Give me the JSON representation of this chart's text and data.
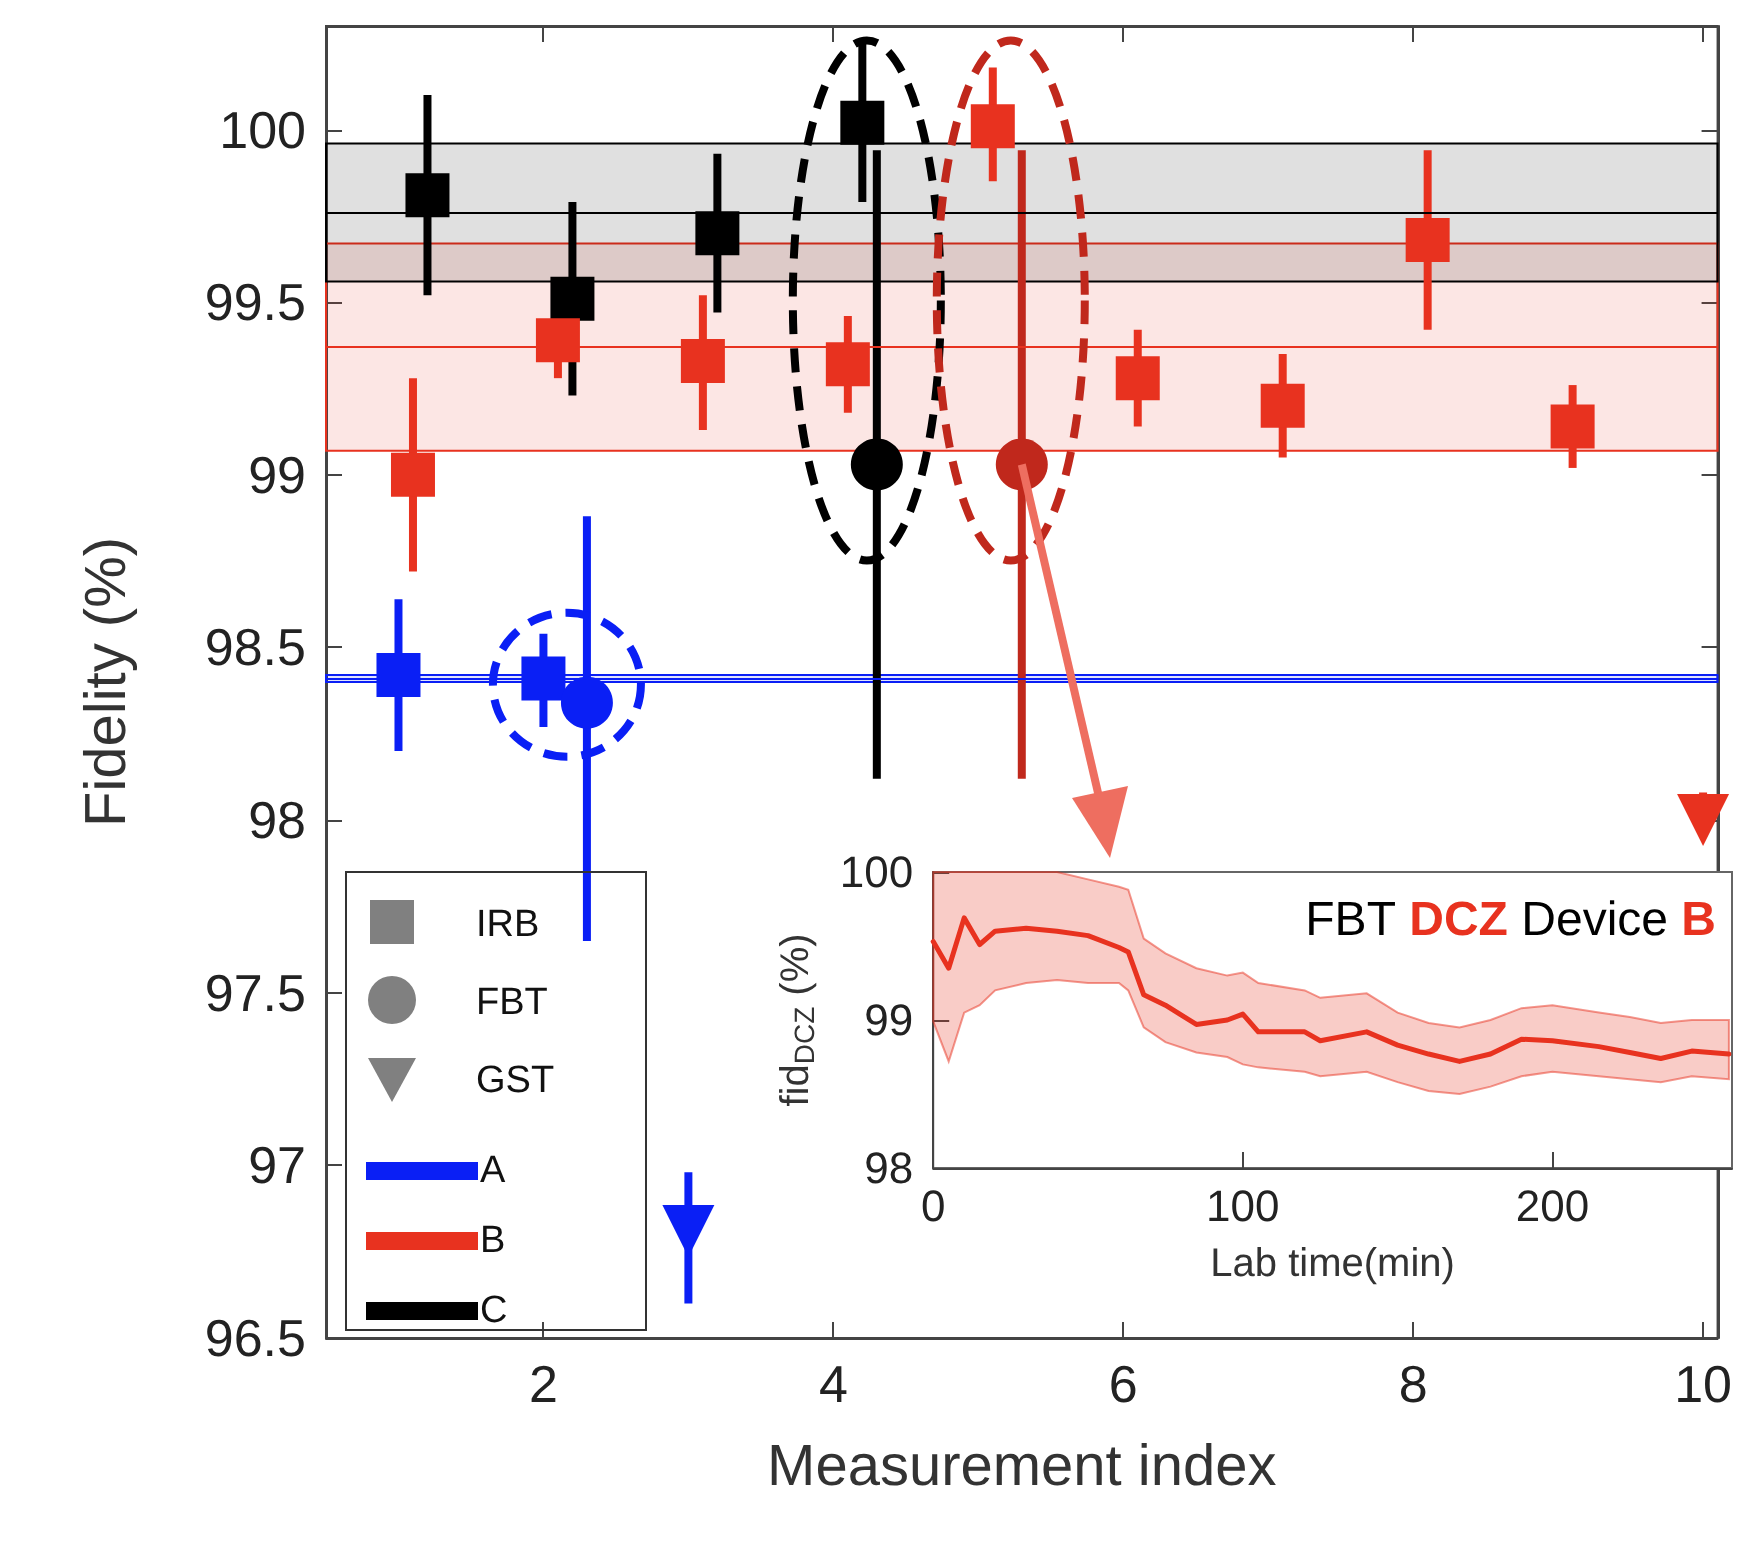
{
  "chart_data": [
    {
      "type": "scatter",
      "xlabel": "Measurement index",
      "ylabel": "Fidelity (%)",
      "xlim": [
        0.5,
        10.1
      ],
      "ylim": [
        96.5,
        100.3
      ],
      "xticks": [
        2,
        4,
        6,
        8,
        10
      ],
      "yticks": [
        96.5,
        97,
        97.5,
        98,
        98.5,
        99,
        99.5,
        100
      ],
      "grid": false,
      "legend": "bottom left",
      "annotations": [
        "IRB",
        "FBT",
        "GST"
      ],
      "series": [
        {
          "marker": "square",
          "x": [
            1.2,
            2.2,
            3.2,
            4.2,
            1.1,
            2.1,
            3.1,
            4.1,
            5.1,
            6.1,
            7.1,
            8.1,
            9.1,
            1.0,
            2.0
          ],
          "values": [
            99.81,
            99.51,
            99.7,
            100.02,
            99.0,
            99.39,
            99.33,
            99.32,
            100.01,
            99.28,
            99.2,
            99.68,
            99.14,
            98.42,
            98.41
          ],
          "errors": [
            [
              99.52,
              100.1
            ],
            [
              99.23,
              99.79
            ],
            [
              99.47,
              99.93
            ],
            [
              99.79,
              100.26
            ],
            [
              98.72,
              99.28
            ],
            [
              99.28,
              99.44
            ],
            [
              99.13,
              99.52
            ],
            [
              99.18,
              99.46
            ],
            [
              99.85,
              100.18
            ],
            [
              99.14,
              99.42
            ],
            [
              99.05,
              99.35
            ],
            [
              99.42,
              99.94
            ],
            [
              99.02,
              99.26
            ],
            [
              98.2,
              98.64
            ],
            [
              98.27,
              98.54
            ]
          ],
          "colors": [
            "#000000",
            "#000000",
            "#000000",
            "#000000",
            "#e8321f",
            "#e8321f",
            "#e8321f",
            "#e8321f",
            "#e8321f",
            "#e8321f",
            "#e8321f",
            "#e8321f",
            "#e8321f",
            "#0a1ff5",
            "#0a1ff5"
          ]
        },
        {
          "marker": "circle",
          "x": [
            2.3,
            4.3,
            5.3
          ],
          "values": [
            98.34,
            99.03,
            99.03
          ],
          "errors": [
            [
              97.65,
              98.88
            ],
            [
              98.12,
              99.94
            ],
            [
              98.12,
              99.94
            ]
          ],
          "colors": [
            "#0a1ff5",
            "#000000",
            "#c0281c"
          ]
        },
        {
          "marker": "triangle",
          "x": [
            3.0,
            10.0
          ],
          "values": [
            96.81,
            98.0
          ],
          "errors": [
            [
              96.6,
              96.98
            ],
            [
              97.95,
              98.08
            ]
          ],
          "colors": [
            "#0a1ff5",
            "#e8321f"
          ]
        }
      ],
      "bands": [
        {
          "axis": "y",
          "from": 98.4,
          "to": 98.42,
          "label": "A",
          "color": "#0a1ff5"
        },
        {
          "axis": "y",
          "from": 99.07,
          "to": 99.67,
          "label": "B",
          "color": "#e8321f"
        },
        {
          "axis": "y",
          "from": 99.56,
          "to": 99.96,
          "label": "C",
          "color": "#000000"
        }
      ],
      "ref_lines": [
        {
          "axis": "y",
          "value": 98.41,
          "color": "#0a1ff5"
        },
        {
          "axis": "y",
          "value": 99.37,
          "color": "#e8321f"
        },
        {
          "axis": "y",
          "value": 99.76,
          "color": "#000000"
        }
      ]
    },
    {
      "type": "line",
      "title": "FBT DCZ Device B",
      "xlabel": "Lab time(min)",
      "ylabel": "fid$_{DCZ}$ (%)",
      "xlim": [
        0,
        258
      ],
      "ylim": [
        98,
        100
      ],
      "xticks": [
        0,
        100,
        200
      ],
      "yticks": [
        98,
        99,
        100
      ],
      "grid": false,
      "series": [
        {
          "color": "#e8321f",
          "x": [
            0,
            5,
            10,
            15,
            20,
            30,
            40,
            50,
            60,
            63,
            68,
            75,
            85,
            95,
            100,
            105,
            120,
            125,
            140,
            150,
            160,
            170,
            180,
            190,
            200,
            215,
            225,
            235,
            245,
            257
          ],
          "values": [
            99.53,
            99.35,
            99.69,
            99.51,
            99.6,
            99.62,
            99.6,
            99.57,
            99.49,
            99.46,
            99.17,
            99.1,
            98.97,
            99.0,
            99.04,
            98.92,
            98.92,
            98.86,
            98.92,
            98.83,
            98.77,
            98.72,
            98.77,
            98.87,
            98.86,
            98.82,
            98.78,
            98.74,
            98.79,
            98.77
          ],
          "lower": [
            98.99,
            98.72,
            99.05,
            99.1,
            99.2,
            99.25,
            99.27,
            99.25,
            99.25,
            99.2,
            98.95,
            98.85,
            98.78,
            98.75,
            98.7,
            98.68,
            98.65,
            98.62,
            98.65,
            98.58,
            98.52,
            98.5,
            98.55,
            98.62,
            98.65,
            98.62,
            98.6,
            98.58,
            98.62,
            98.6
          ],
          "upper": [
            100,
            100,
            100,
            100,
            100,
            100,
            100,
            99.95,
            99.9,
            99.88,
            99.55,
            99.45,
            99.35,
            99.3,
            99.32,
            99.25,
            99.2,
            99.15,
            99.18,
            99.05,
            98.98,
            98.95,
            99.0,
            99.08,
            99.1,
            99.05,
            99.02,
            98.98,
            99.0,
            99.0
          ]
        }
      ]
    }
  ]
}
